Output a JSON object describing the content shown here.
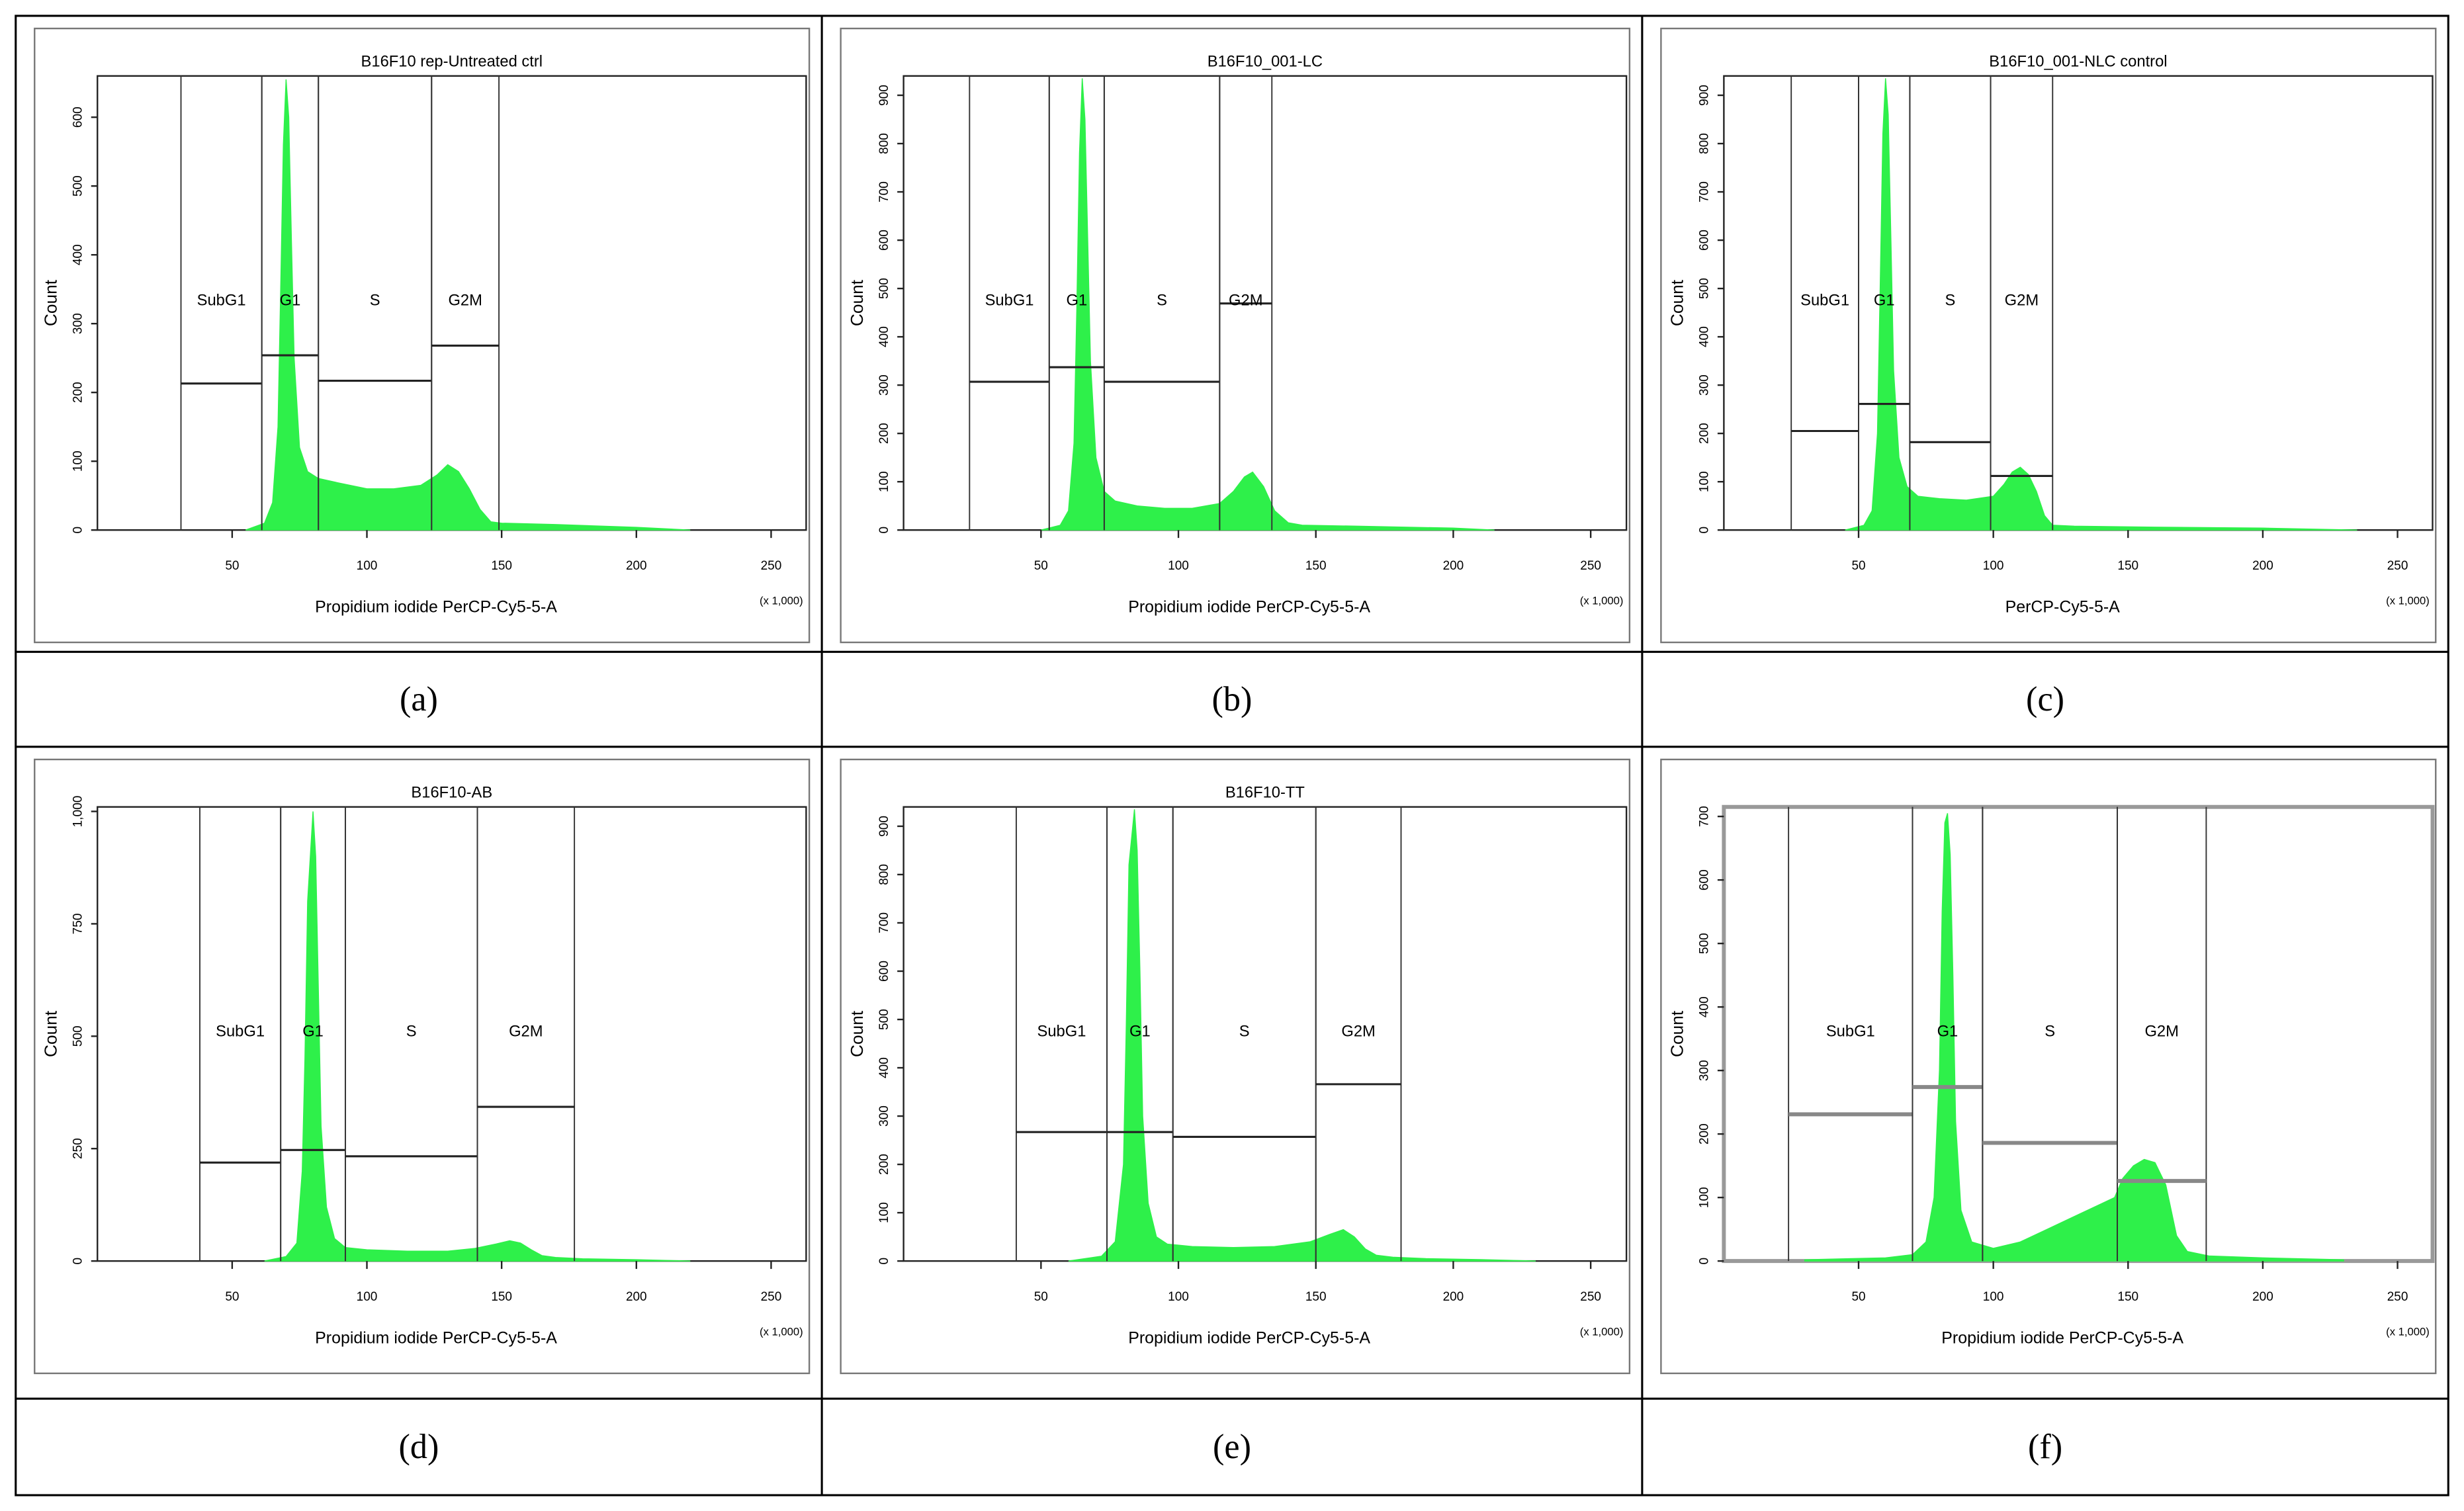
{
  "chart_data": [
    {
      "type": "area",
      "title": "B16F10 rep-Untreated ctrl",
      "x_label": "Propidium iodide PerCP-Cy5-5-A",
      "y_label": "Count",
      "x_unit": "(x 1,000)",
      "caption": "(a)",
      "color": "#2ef04a",
      "xlim": [
        0,
        263
      ],
      "ylim": [
        0,
        660
      ],
      "xticks": [
        50,
        100,
        150,
        200,
        250
      ],
      "yticks": [
        0,
        100,
        200,
        300,
        400,
        500,
        600
      ],
      "x": [
        55,
        62,
        65,
        67,
        68,
        69,
        70,
        71,
        72,
        73,
        75,
        78,
        82,
        90,
        100,
        110,
        120,
        126,
        130,
        134,
        138,
        142,
        146,
        150,
        170,
        200,
        220
      ],
      "values": [
        0,
        10,
        40,
        150,
        350,
        560,
        655,
        600,
        420,
        250,
        120,
        85,
        75,
        68,
        60,
        60,
        65,
        80,
        95,
        85,
        60,
        30,
        12,
        10,
        8,
        4,
        0
      ],
      "gates": [
        {
          "name": "SubG1",
          "x_range": [
            31,
            61
          ],
          "level": 213
        },
        {
          "name": "G1",
          "x_range": [
            61,
            82
          ],
          "level": 254
        },
        {
          "name": "S",
          "x_range": [
            82,
            124
          ],
          "level": 217
        },
        {
          "name": "G2M",
          "x_range": [
            124,
            149
          ],
          "level": 268
        }
      ]
    },
    {
      "type": "area",
      "title": "B16F10_001-LC",
      "x_label": "Propidium iodide PerCP-Cy5-5-A",
      "y_label": "Count",
      "x_unit": "(x 1,000)",
      "caption": "(b)",
      "color": "#2ef04a",
      "xlim": [
        0,
        263
      ],
      "ylim": [
        0,
        940
      ],
      "xticks": [
        50,
        100,
        150,
        200,
        250
      ],
      "yticks": [
        0,
        100,
        200,
        300,
        400,
        500,
        600,
        700,
        800,
        900
      ],
      "x": [
        50,
        57,
        60,
        62,
        63,
        64,
        65,
        66,
        67,
        68,
        70,
        73,
        77,
        85,
        95,
        105,
        115,
        120,
        124,
        127,
        131,
        135,
        140,
        145,
        165,
        200,
        215
      ],
      "values": [
        0,
        10,
        40,
        180,
        450,
        780,
        935,
        850,
        600,
        350,
        150,
        80,
        60,
        50,
        45,
        45,
        55,
        80,
        110,
        120,
        90,
        40,
        15,
        10,
        8,
        4,
        0
      ],
      "gates": [
        {
          "name": "SubG1",
          "x_range": [
            24,
            53
          ],
          "level": 307
        },
        {
          "name": "G1",
          "x_range": [
            53,
            73
          ],
          "level": 337
        },
        {
          "name": "S",
          "x_range": [
            73,
            115
          ],
          "level": 307
        },
        {
          "name": "G2M",
          "x_range": [
            115,
            134
          ],
          "level": 469
        }
      ]
    },
    {
      "type": "area",
      "title": "B16F10_001-NLC control",
      "x_label": "PerCP-Cy5-5-A",
      "y_label": "Count",
      "x_unit": "(x 1,000)",
      "caption": "(c)",
      "color": "#2ef04a",
      "xlim": [
        0,
        263
      ],
      "ylim": [
        0,
        940
      ],
      "xticks": [
        50,
        100,
        150,
        200,
        250
      ],
      "yticks": [
        0,
        100,
        200,
        300,
        400,
        500,
        600,
        700,
        800,
        900
      ],
      "x": [
        45,
        52,
        55,
        57,
        58,
        59,
        60,
        61,
        62,
        63,
        65,
        68,
        72,
        80,
        90,
        100,
        104,
        107,
        110,
        113,
        116,
        119,
        122,
        130,
        160,
        200,
        235
      ],
      "values": [
        0,
        10,
        40,
        200,
        500,
        820,
        935,
        860,
        600,
        330,
        150,
        90,
        70,
        65,
        62,
        70,
        95,
        120,
        130,
        115,
        80,
        30,
        10,
        8,
        6,
        4,
        0
      ],
      "gates": [
        {
          "name": "SubG1",
          "x_range": [
            25,
            50
          ],
          "level": 205
        },
        {
          "name": "G1",
          "x_range": [
            50,
            69
          ],
          "level": 261
        },
        {
          "name": "S",
          "x_range": [
            69,
            99
          ],
          "level": 182
        },
        {
          "name": "G2M",
          "x_range": [
            99,
            122
          ],
          "level": 112
        }
      ]
    },
    {
      "type": "area",
      "title": "B16F10-AB",
      "x_label": "Propidium iodide PerCP-Cy5-5-A",
      "y_label": "Count",
      "x_unit": "(x 1,000)",
      "caption": "(d)",
      "color": "#2ef04a",
      "xlim": [
        0,
        263
      ],
      "ylim": [
        0,
        1010
      ],
      "xticks": [
        50,
        100,
        150,
        200,
        250
      ],
      "yticks": [
        0,
        250,
        500,
        750,
        {
          "value": 1000,
          "label": "1,000"
        }
      ],
      "x": [
        62,
        70,
        74,
        76,
        77,
        78,
        80,
        81,
        82,
        83,
        85,
        88,
        92,
        100,
        115,
        130,
        140,
        148,
        153,
        157,
        161,
        165,
        170,
        180,
        200,
        220
      ],
      "values": [
        0,
        10,
        40,
        200,
        450,
        800,
        1000,
        900,
        600,
        300,
        120,
        50,
        30,
        25,
        22,
        22,
        28,
        38,
        45,
        40,
        25,
        12,
        8,
        5,
        3,
        0
      ],
      "gates": [
        {
          "name": "SubG1",
          "x_range": [
            38,
            68
          ],
          "level": 219
        },
        {
          "name": "G1",
          "x_range": [
            68,
            92
          ],
          "level": 247
        },
        {
          "name": "S",
          "x_range": [
            92,
            141
          ],
          "level": 233
        },
        {
          "name": "G2M",
          "x_range": [
            141,
            177
          ],
          "level": 343
        }
      ]
    },
    {
      "type": "area",
      "title": "B16F10-TT",
      "x_label": "Propidium iodide PerCP-Cy5-5-A",
      "y_label": "Count",
      "x_unit": "(x 1,000)",
      "caption": "(e)",
      "color": "#2ef04a",
      "xlim": [
        0,
        263
      ],
      "ylim": [
        0,
        940
      ],
      "xticks": [
        50,
        100,
        150,
        200,
        250
      ],
      "yticks": [
        0,
        100,
        200,
        300,
        400,
        500,
        600,
        700,
        800,
        900
      ],
      "x": [
        60,
        72,
        77,
        80,
        81,
        82,
        84,
        85,
        86,
        87,
        89,
        92,
        96,
        105,
        120,
        135,
        148,
        155,
        160,
        164,
        168,
        172,
        178,
        190,
        210,
        230
      ],
      "values": [
        0,
        10,
        40,
        200,
        480,
        820,
        935,
        850,
        600,
        300,
        120,
        50,
        35,
        30,
        28,
        30,
        40,
        55,
        65,
        50,
        25,
        12,
        8,
        5,
        3,
        0
      ],
      "gates": [
        {
          "name": "SubG1",
          "x_range": [
            41,
            74
          ],
          "level": 267
        },
        {
          "name": "G1",
          "x_range": [
            74,
            98
          ],
          "level": 267
        },
        {
          "name": "S",
          "x_range": [
            98,
            150
          ],
          "level": 257
        },
        {
          "name": "G2M",
          "x_range": [
            150,
            181
          ],
          "level": 366
        }
      ]
    },
    {
      "type": "area",
      "x_label": "Propidium iodide PerCP-Cy5-5-A",
      "y_label": "Count",
      "x_unit": "(x 1,000)",
      "caption": "(f)",
      "color": "#2ef04a",
      "xlim": [
        0,
        263
      ],
      "ylim": [
        0,
        715
      ],
      "xticks": [
        50,
        100,
        150,
        200,
        250
      ],
      "yticks": [
        0,
        100,
        200,
        300,
        400,
        500,
        600,
        700
      ],
      "x": [
        30,
        60,
        70,
        75,
        78,
        80,
        81,
        82,
        83,
        84,
        85,
        86,
        88,
        92,
        100,
        110,
        120,
        130,
        140,
        145,
        148,
        152,
        156,
        160,
        164,
        168,
        172,
        180,
        200,
        230
      ],
      "values": [
        2,
        5,
        10,
        30,
        100,
        300,
        550,
        690,
        705,
        640,
        450,
        220,
        80,
        30,
        20,
        30,
        50,
        70,
        90,
        100,
        130,
        150,
        160,
        155,
        120,
        40,
        15,
        8,
        5,
        2
      ],
      "gates": [
        {
          "name": "SubG1",
          "x_range": [
            24,
            70
          ],
          "level": 231
        },
        {
          "name": "G1",
          "x_range": [
            70,
            96
          ],
          "level": 274
        },
        {
          "name": "S",
          "x_range": [
            96,
            146
          ],
          "level": 186
        },
        {
          "name": "G2M",
          "x_range": [
            146,
            179
          ],
          "level": 126
        }
      ]
    }
  ]
}
